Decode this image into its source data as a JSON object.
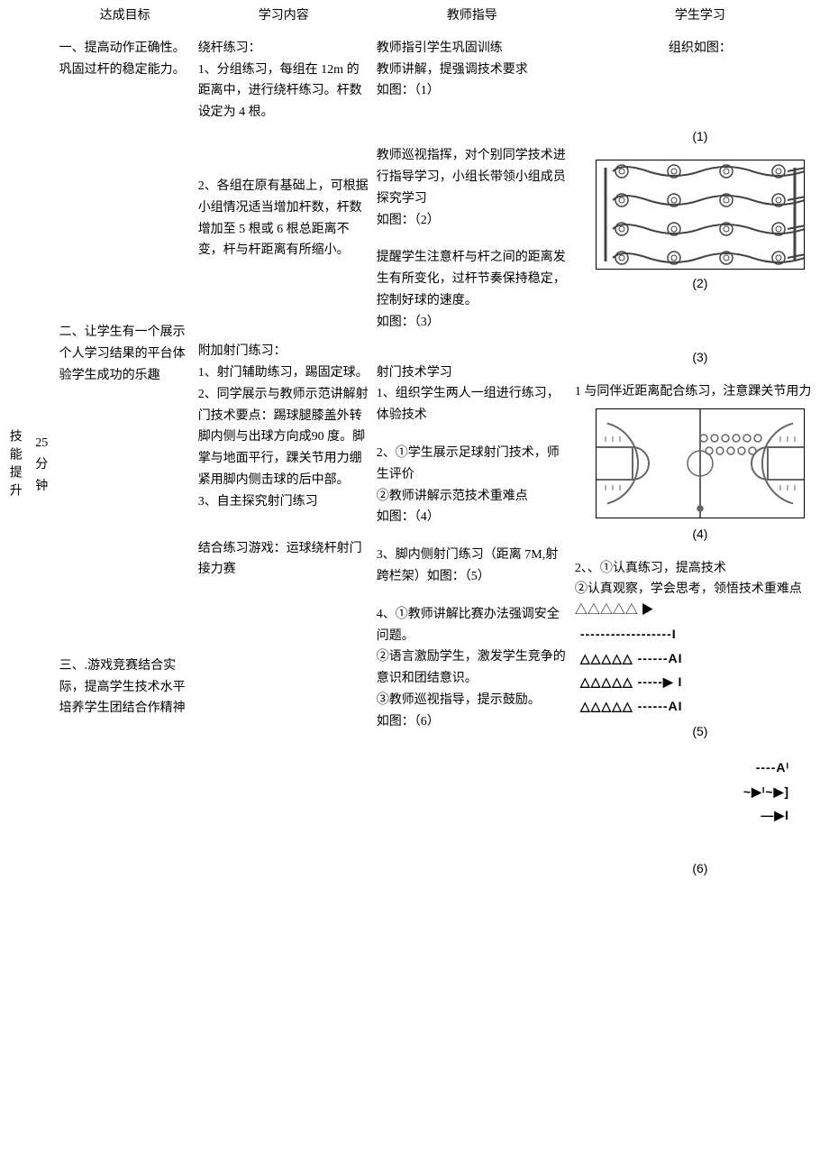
{
  "headers": {
    "goal": "达成目标",
    "content": "学习内容",
    "teach": "教师指导",
    "student": "学生学习"
  },
  "phase_label": "技能提升",
  "time_label": "25分钟",
  "goals": {
    "g1": "一、提高动作正确性。巩固过杆的稳定能力。",
    "g2": "二、让学生有一个展示个人学习结果的平台体验学生成功的乐趣",
    "g3": "三、.游戏竞赛结合实际，提高学生技术水平培养学生团结合作精神"
  },
  "content": {
    "c1_title": "绕杆练习：",
    "c1_1": "1、分组练习，每组在 12m 的距离中，进行绕杆练习。杆数设定为 4 根。",
    "c1_2": "2、各组在原有基础上，可根据小组情况适当增加杆数，杆数增加至 5 根或 6 根总距离不变，杆与杆距离有所缩小。",
    "c2_title": "附加射门练习：",
    "c2_1": "1、射门辅助练习，踢固定球。",
    "c2_2": "2、同学展示与教师示范讲解射门技术要点：踢球腿膝盖外转脚内侧与出球方向成90 度。脚掌与地面平行，踝关节用力绷紧用脚内侧击球的后中部。",
    "c2_3": "3、自主探究射门练习",
    "c3_title": "结合练习游戏：运球绕杆射门接力赛"
  },
  "teach": {
    "t1a": "教师指引学生巩固训练",
    "t1b": "教师讲解，提强调技术要求",
    "t1c": "如图：（1）",
    "t2a": "教师巡视指挥，对个别同学技术进行指导学习，小组长带领小组成员探究学习",
    "t2b": "如图：（2）",
    "t3a": "提醒学生注意杆与杆之间的距离发生有所变化，过杆节奏保持稳定，控制好球的速度。",
    "t3b": "如图：（3）",
    "t4_title": "射门技术学习",
    "t4_1": "1、组织学生两人一组进行练习，体验技术",
    "t4_2a": "2、①学生展示足球射门技术，师生评价",
    "t4_2b": "②教师讲解示范技术重难点",
    "t4_2c": "如图：（4）",
    "t4_3": "3、脚内侧射门练习（距离 7M,射跨栏架）如图：（5）",
    "t5_1": "4、①教师讲解比赛办法强调安全问题。",
    "t5_2": "②语言激励学生，激发学生竞争的意识和团结意识。",
    "t5_3": "③教师巡视指导，提示鼓励。",
    "t5_4": "如图：（6）"
  },
  "student": {
    "s_top": "组织如图：",
    "fig1": "(1)",
    "fig2": "(2)",
    "fig3": "(3)",
    "s3": "1 与同伴近距离配合练习，注意踝关节用力",
    "fig4": "(4)",
    "s4a": "2、、①认真练习，提高技术",
    "s4b": "②认真观察，学会思考，领悟技术重难点 △△△△△ ▶",
    "line1": "------------------I",
    "line2": "△△△△△ ------AI",
    "line3": "△△△△△ -----▶ I",
    "line4": "△△△△△ ------AI",
    "fig5": "(5)",
    "rl1": "----Aᴵ",
    "rl2": "~▶ᴵ~▶]",
    "rl3": "—▶I",
    "fig6": "(6)"
  },
  "figures": {
    "drill": {
      "rows": 4,
      "cones_per_row": 4,
      "stroke": "#444444",
      "cone_fill": "#ffffff",
      "line_width": 2
    },
    "court": {
      "stroke": "#666666",
      "line_width": 2
    }
  }
}
